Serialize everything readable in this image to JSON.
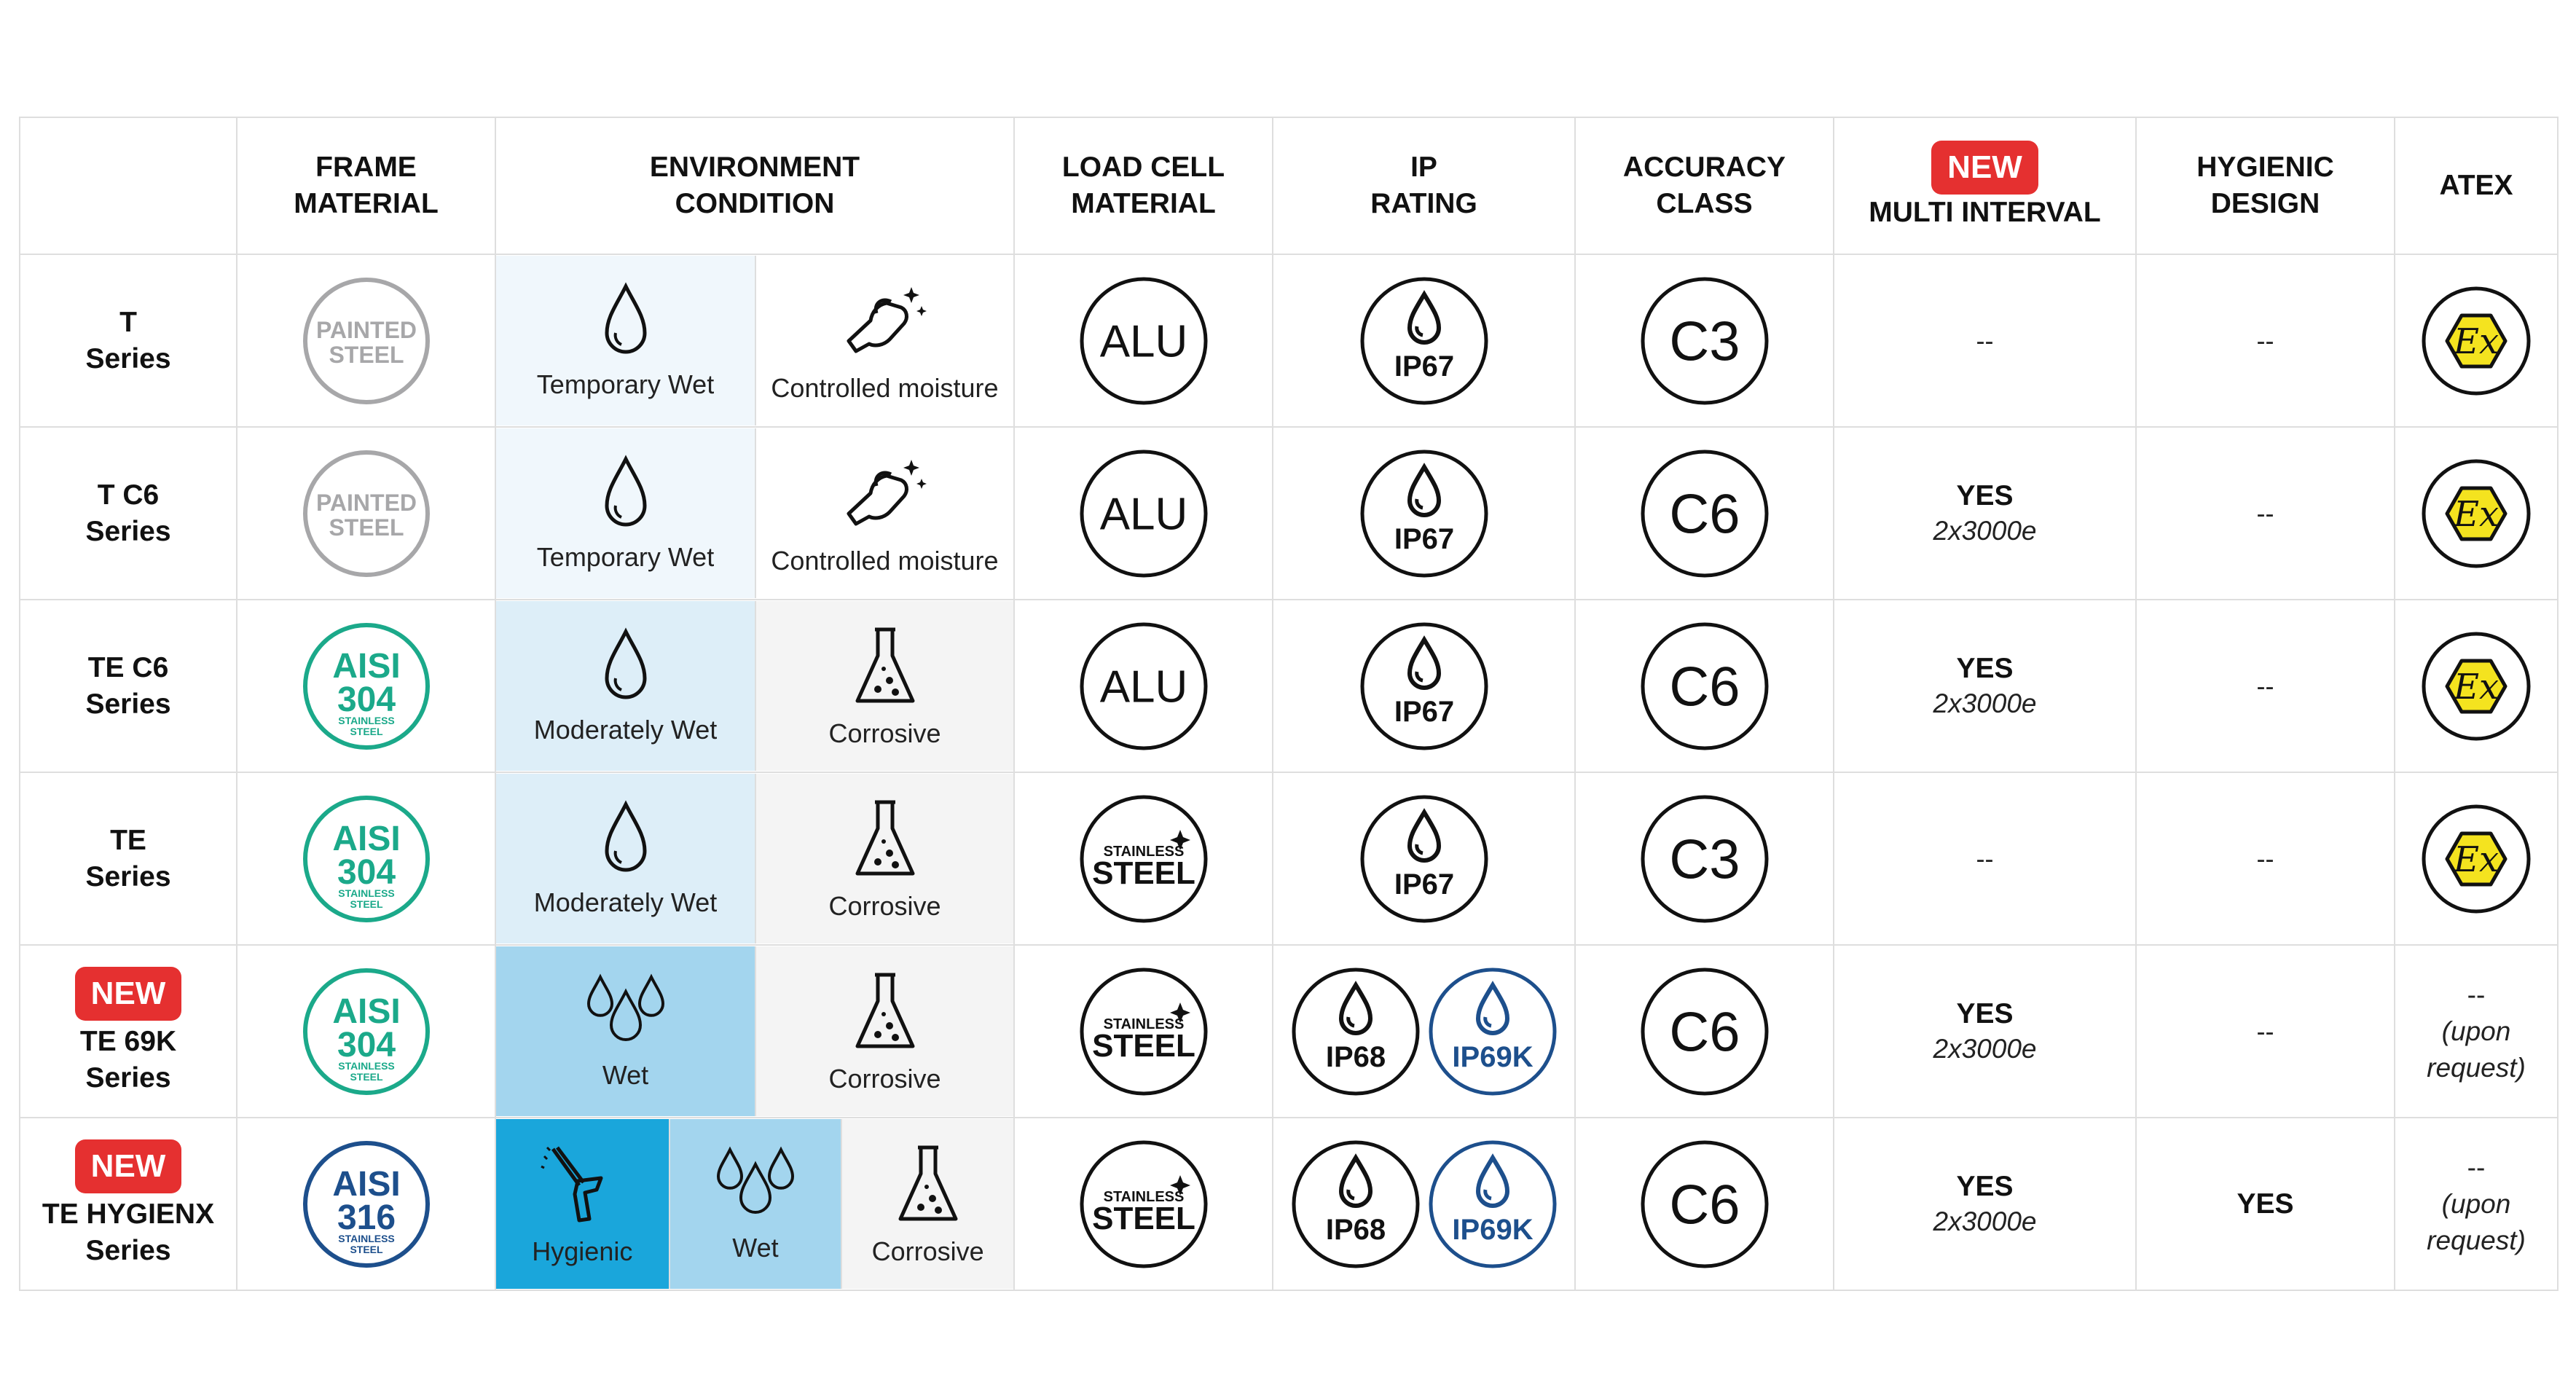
{
  "headers": {
    "frame": [
      "FRAME",
      "MATERIAL"
    ],
    "env": [
      "ENVIRONMENT",
      "CONDITION"
    ],
    "loadcell": [
      "LOAD CELL",
      "MATERIAL"
    ],
    "ip": [
      "IP",
      "RATING"
    ],
    "accuracy": [
      "ACCURACY",
      "CLASS"
    ],
    "multi_badge": "NEW",
    "multi": "MULTI INTERVAL",
    "hygienic": [
      "HYGIENIC",
      "DESIGN"
    ],
    "atex": "ATEX"
  },
  "icon_text": {
    "painted": [
      "PAINTED",
      "STEEL"
    ],
    "aisi": "AISI",
    "stainless_small": [
      "STAINLESS",
      "STEEL"
    ],
    "alu": "ALU",
    "stainless_big": [
      "STAINLESS",
      "STEEL"
    ],
    "ex": "Ex"
  },
  "colors": {
    "new_badge": "#e53030",
    "aisi304": "#1ba98a",
    "aisi316": "#1d4f8c",
    "ip69k": "#1d4f8c",
    "painted": "#a7a7a9",
    "atex_fill": "#f4e31f",
    "hygienic_cell": "#1aa6db",
    "wet_cell": "#a3d5ee",
    "moderately_wet_cell": "#ddeef8",
    "temporary_wet_cell": "#f0f7fc"
  },
  "rows": [
    {
      "badge": "",
      "name": [
        "T",
        "Series"
      ],
      "frame": "painted",
      "aisi_num": "",
      "env": [
        {
          "label": "Temporary Wet",
          "icon": "drop-icon"
        },
        {
          "label": "Controlled moisture",
          "icon": "wipe-hand-icon"
        }
      ],
      "loadcell": "alu",
      "ip": [
        "IP67"
      ],
      "accuracy": "C3",
      "multi": [
        "--",
        ""
      ],
      "hygienic": "--",
      "atex": "ex",
      "atex_text": [
        "",
        "",
        ""
      ]
    },
    {
      "badge": "",
      "name": [
        "T C6",
        "Series"
      ],
      "frame": "painted",
      "aisi_num": "",
      "env": [
        {
          "label": "Temporary Wet",
          "icon": "drop-icon"
        },
        {
          "label": "Controlled moisture",
          "icon": "wipe-hand-icon"
        }
      ],
      "loadcell": "alu",
      "ip": [
        "IP67"
      ],
      "accuracy": "C6",
      "multi": [
        "YES",
        "2x3000e"
      ],
      "hygienic": "--",
      "atex": "ex",
      "atex_text": [
        "",
        "",
        ""
      ]
    },
    {
      "badge": "",
      "name": [
        "TE C6",
        "Series"
      ],
      "frame": "aisi",
      "aisi_num": "304",
      "env": [
        {
          "label": "Moderately Wet",
          "icon": "drop-icon"
        },
        {
          "label": "Corrosive",
          "icon": "flask-icon"
        }
      ],
      "loadcell": "alu",
      "ip": [
        "IP67"
      ],
      "accuracy": "C6",
      "multi": [
        "YES",
        "2x3000e"
      ],
      "hygienic": "--",
      "atex": "ex",
      "atex_text": [
        "",
        "",
        ""
      ]
    },
    {
      "badge": "",
      "name": [
        "TE",
        "Series"
      ],
      "frame": "aisi",
      "aisi_num": "304",
      "env": [
        {
          "label": "Moderately Wet",
          "icon": "drop-icon"
        },
        {
          "label": "Corrosive",
          "icon": "flask-icon"
        }
      ],
      "loadcell": "stainless",
      "ip": [
        "IP67"
      ],
      "accuracy": "C3",
      "multi": [
        "--",
        ""
      ],
      "hygienic": "--",
      "atex": "ex",
      "atex_text": [
        "",
        "",
        ""
      ]
    },
    {
      "badge": "NEW",
      "name": [
        "TE 69K",
        "Series"
      ],
      "frame": "aisi",
      "aisi_num": "304",
      "env": [
        {
          "label": "Wet",
          "icon": "drops-icon"
        },
        {
          "label": "Corrosive",
          "icon": "flask-icon"
        }
      ],
      "loadcell": "stainless",
      "ip": [
        "IP68",
        "IP69K"
      ],
      "accuracy": "C6",
      "multi": [
        "YES",
        "2x3000e"
      ],
      "hygienic": "--",
      "atex": "text",
      "atex_text": [
        "--",
        "(upon",
        "request)"
      ]
    },
    {
      "badge": "NEW",
      "name": [
        "TE HYGIENX",
        "Series"
      ],
      "frame": "aisi316",
      "aisi_num": "316",
      "env": [
        {
          "label": "Hygienic",
          "icon": "pressure-washer-icon"
        },
        {
          "label": "Wet",
          "icon": "drops-icon"
        },
        {
          "label": "Corrosive",
          "icon": "flask-icon"
        }
      ],
      "loadcell": "stainless",
      "ip": [
        "IP68",
        "IP69K"
      ],
      "accuracy": "C6",
      "multi": [
        "YES",
        "2x3000e"
      ],
      "hygienic": "YES",
      "atex": "text",
      "atex_text": [
        "--",
        "(upon",
        "request)"
      ]
    }
  ]
}
